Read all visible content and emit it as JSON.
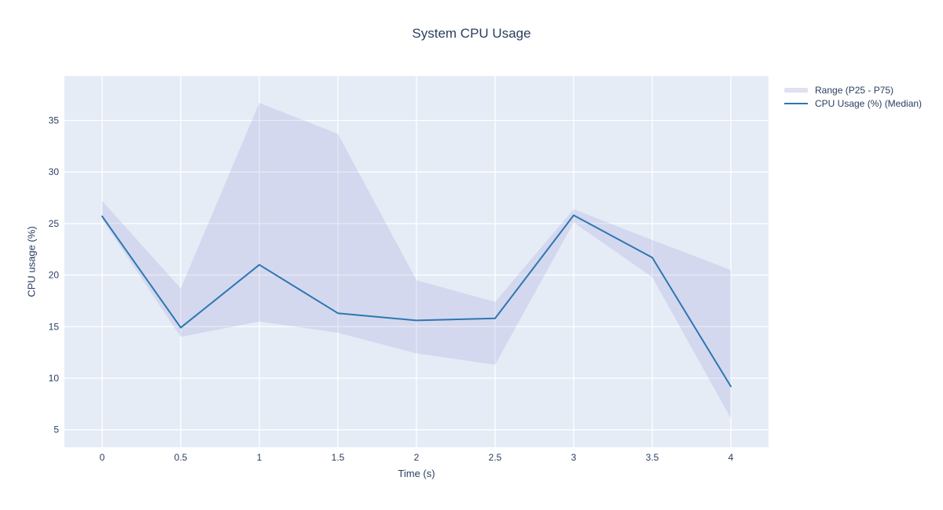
{
  "title": "System CPU Usage",
  "chart_data": {
    "type": "line",
    "x": [
      0,
      0.5,
      1,
      1.5,
      2,
      2.5,
      3,
      3.5,
      4
    ],
    "series": [
      {
        "name": "Range (P25 - P75)",
        "type": "band",
        "upper": [
          27.2,
          18.7,
          36.7,
          33.7,
          19.5,
          17.4,
          26.4,
          23.4,
          20.5
        ],
        "lower": [
          25.4,
          14.0,
          15.5,
          14.4,
          12.4,
          11.3,
          25.1,
          19.8,
          6.1
        ]
      },
      {
        "name": "CPU Usage (%) (Median)",
        "type": "line",
        "values": [
          25.7,
          14.9,
          21.0,
          16.3,
          15.6,
          15.8,
          25.8,
          21.7,
          9.2
        ]
      }
    ],
    "title": "System CPU Usage",
    "xlabel": "Time (s)",
    "ylabel": "CPU usage (%)",
    "xlim": [
      -0.24,
      4.24
    ],
    "ylim": [
      3.3,
      39.3
    ],
    "x_ticks": [
      "0",
      "0.5",
      "1",
      "1.5",
      "2",
      "2.5",
      "3",
      "3.5",
      "4"
    ],
    "x_tick_values": [
      0,
      0.5,
      1,
      1.5,
      2,
      2.5,
      3,
      3.5,
      4
    ],
    "y_ticks": [
      "5",
      "10",
      "15",
      "20",
      "25",
      "30",
      "35"
    ],
    "y_tick_values": [
      5,
      10,
      15,
      20,
      25,
      30,
      35
    ],
    "grid": true,
    "legend_position": "right-outside"
  },
  "legend": {
    "items": [
      {
        "label": "Range (P25 - P75)",
        "swatch": "band"
      },
      {
        "label": "CPU Usage (%) (Median)",
        "swatch": "line"
      }
    ]
  },
  "colors": {
    "plot_bg": "#e5ecf6",
    "grid": "#ffffff",
    "band_fill": "rgba(139,139,210,0.2)",
    "band_legend_swatch": "#dfe0f1",
    "median_line": "#2e76b2",
    "text": "#2a3f5f"
  }
}
